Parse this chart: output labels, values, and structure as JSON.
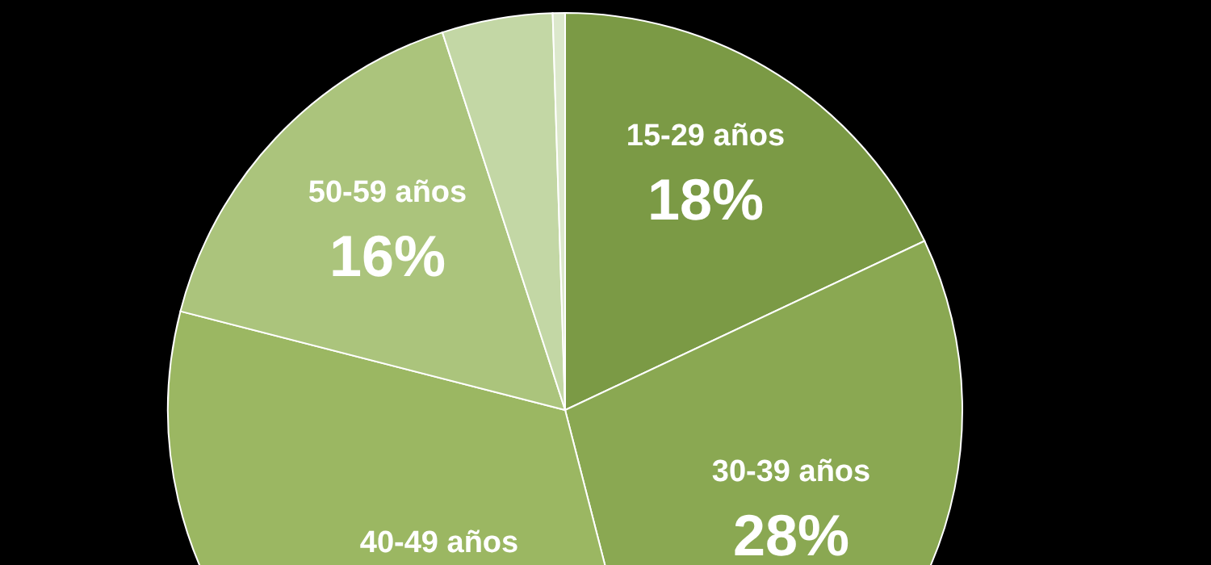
{
  "chart_data": {
    "type": "pie",
    "categories": [
      "15-29 años",
      "30-39 años",
      "40-49 años",
      "50-59 años",
      null,
      null
    ],
    "values": [
      18,
      28,
      33,
      16,
      4.5,
      0.5
    ],
    "colors": [
      "#7b9a45",
      "#8aa852",
      "#9bb762",
      "#abc47c",
      "#c3d7a5",
      "#dce8cc"
    ],
    "value_labels": [
      "18%",
      "28%",
      null,
      "16%",
      null,
      null
    ]
  }
}
